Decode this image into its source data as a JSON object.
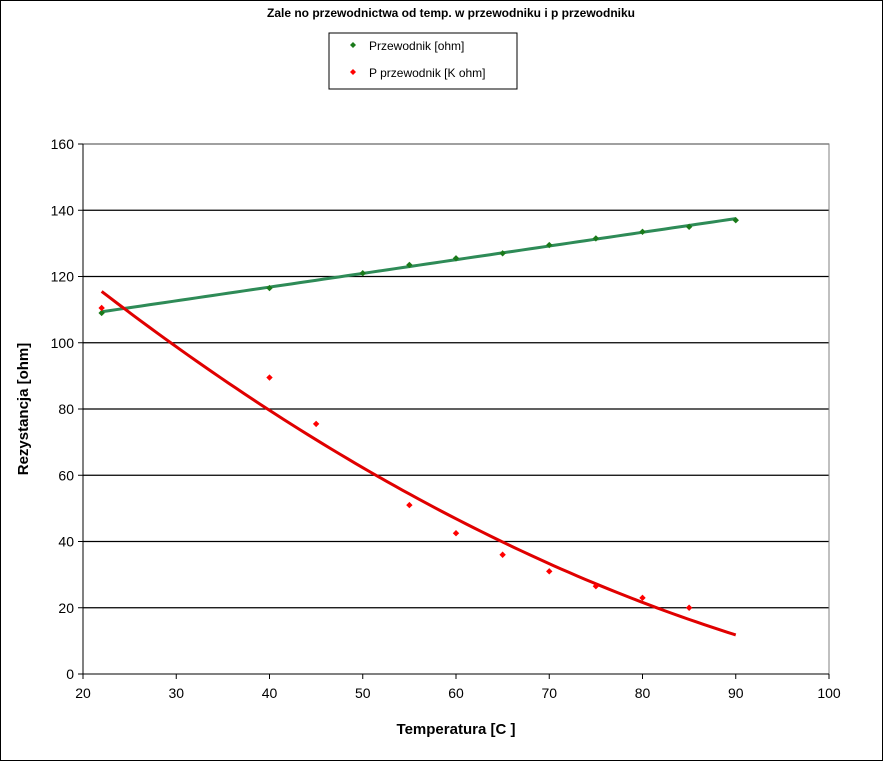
{
  "chart_data": {
    "type": "scatter",
    "title": "Zale  no    przewodnictwa od temp. w przewodniku i p   przewodniku",
    "xlabel": "Temperatura [C ]",
    "ylabel": "Rezystancja [ohm]",
    "xlim": [
      20,
      100
    ],
    "ylim": [
      0,
      160
    ],
    "xticks": [
      20,
      30,
      40,
      50,
      60,
      70,
      80,
      90,
      100
    ],
    "yticks": [
      0,
      20,
      40,
      60,
      80,
      100,
      120,
      140,
      160
    ],
    "grid": "horizontal",
    "legend_position": "top-center",
    "series": [
      {
        "name": "Przewodnik [ohm]",
        "color": "#1a7a1a",
        "trend_color": "#2e8b57",
        "trendline": "linear",
        "points": [
          {
            "x": 22,
            "y": 109
          },
          {
            "x": 40,
            "y": 116.5
          },
          {
            "x": 50,
            "y": 121
          },
          {
            "x": 55,
            "y": 123.5
          },
          {
            "x": 60,
            "y": 125.5
          },
          {
            "x": 65,
            "y": 127
          },
          {
            "x": 70,
            "y": 129.5
          },
          {
            "x": 75,
            "y": 131.5
          },
          {
            "x": 80,
            "y": 133.5
          },
          {
            "x": 85,
            "y": 135
          },
          {
            "x": 90,
            "y": 137
          }
        ]
      },
      {
        "name": "P   przewodnik [K ohm]",
        "color": "#ff0000",
        "trend_color": "#e00000",
        "trendline": "polynomial",
        "points": [
          {
            "x": 22,
            "y": 110.5
          },
          {
            "x": 40,
            "y": 89.5
          },
          {
            "x": 45,
            "y": 75.5
          },
          {
            "x": 55,
            "y": 51
          },
          {
            "x": 60,
            "y": 42.5
          },
          {
            "x": 65,
            "y": 36
          },
          {
            "x": 70,
            "y": 31
          },
          {
            "x": 75,
            "y": 26.5
          },
          {
            "x": 80,
            "y": 23
          },
          {
            "x": 85,
            "y": 20
          }
        ]
      }
    ]
  }
}
